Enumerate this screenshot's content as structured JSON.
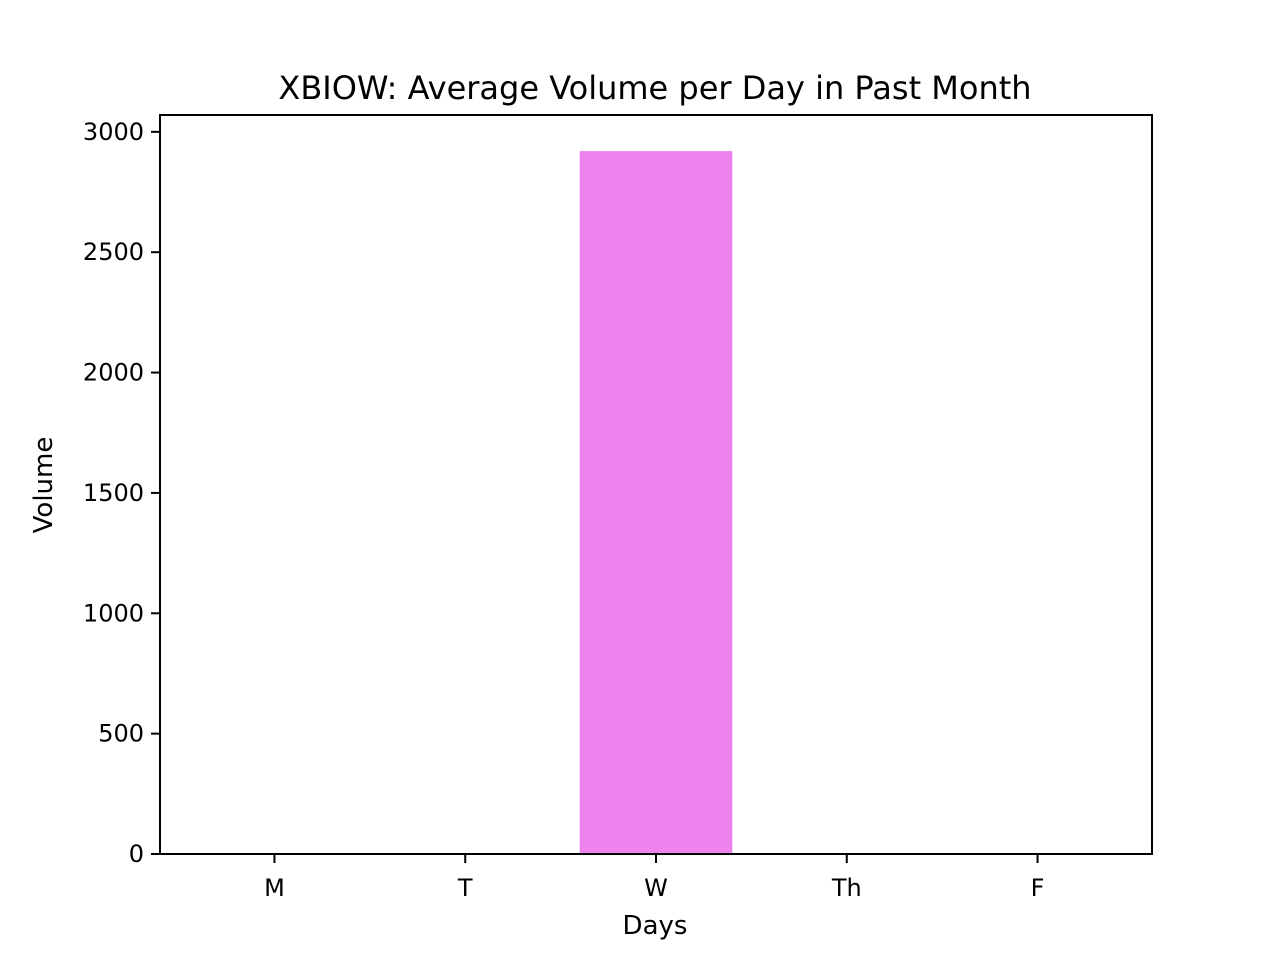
{
  "chart_data": {
    "type": "bar",
    "title": "XBIOW: Average Volume per Day in Past Month",
    "xlabel": "Days",
    "ylabel": "Volume",
    "categories": [
      "M",
      "T",
      "W",
      "Th",
      "F"
    ],
    "values": [
      0,
      0,
      2920,
      0,
      0
    ],
    "ylim": [
      0,
      3070
    ],
    "yticks": [
      0,
      500,
      1000,
      1500,
      2000,
      2500,
      3000
    ],
    "grid": false,
    "bar_color": "#ee82ee"
  }
}
